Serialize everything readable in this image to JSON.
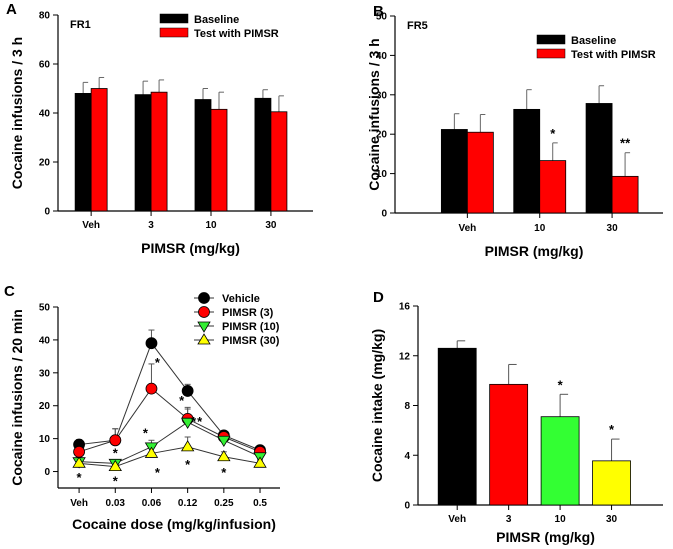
{
  "chart_data": [
    {
      "panel": "A",
      "type": "bar",
      "inset_label": "FR1",
      "categories": [
        "Veh",
        "3",
        "10",
        "30"
      ],
      "series": [
        {
          "name": "Baseline",
          "color": "#000000",
          "values": [
            48,
            47.5,
            45.5,
            46
          ],
          "errors": [
            4.5,
            5.5,
            4.5,
            3.5
          ]
        },
        {
          "name": "Test with PIMSR",
          "color": "#ff0000",
          "values": [
            50,
            48.5,
            41.5,
            40.5
          ],
          "errors": [
            4.5,
            5,
            7,
            6.5
          ]
        }
      ],
      "xlabel": "PIMSR (mg/kg)",
      "ylabel": "Cocaine infusions / 3 h",
      "ylim": [
        0,
        80
      ],
      "yticks": [
        0,
        20,
        40,
        60,
        80
      ],
      "annotations": [],
      "legend_position": "top-right"
    },
    {
      "panel": "B",
      "type": "bar",
      "inset_label": "FR5",
      "categories": [
        "Veh",
        "10",
        "30"
      ],
      "series": [
        {
          "name": "Baseline",
          "color": "#000000",
          "values": [
            21.2,
            26.3,
            27.8
          ],
          "errors": [
            4,
            5,
            4.5
          ]
        },
        {
          "name": "Test with PIMSR",
          "color": "#ff0000",
          "values": [
            20.5,
            13.3,
            9.3
          ],
          "errors": [
            4.5,
            4.5,
            6
          ]
        }
      ],
      "xlabel": "PIMSR (mg/kg)",
      "ylabel": "Cocaine infusions / 3 h",
      "ylim": [
        0,
        50
      ],
      "yticks": [
        0,
        10,
        20,
        30,
        40,
        50
      ],
      "annotations": [
        {
          "category": "10",
          "series": "Test with PIMSR",
          "text": "*"
        },
        {
          "category": "30",
          "series": "Test with PIMSR",
          "text": "**"
        }
      ],
      "legend_position": "top-right"
    },
    {
      "panel": "C",
      "type": "line",
      "categories": [
        "Veh",
        "0.03",
        "0.06",
        "0.12",
        "0.25",
        "0.5"
      ],
      "series": [
        {
          "name": "Vehicle",
          "color": "#000000",
          "marker": "circle",
          "values": [
            8.2,
            9.5,
            39,
            24.5,
            11,
            6.5
          ],
          "errors": [
            1.5,
            3.5,
            4,
            2,
            1,
            1
          ]
        },
        {
          "name": "PIMSR (3)",
          "color": "#ff0000",
          "marker": "circle",
          "values": [
            6,
            9.5,
            25.2,
            16,
            10.5,
            6
          ],
          "errors": [
            2,
            3.5,
            7.5,
            3.5,
            1,
            1
          ]
        },
        {
          "name": "PIMSR (10)",
          "color": "#33ee33",
          "marker": "triangle-down",
          "values": [
            3,
            2.5,
            7.5,
            15,
            9.5,
            4.5
          ],
          "errors": [
            1.5,
            1,
            2,
            4,
            1,
            1
          ]
        },
        {
          "name": "PIMSR (30)",
          "color": "#ffff00",
          "marker": "triangle-up",
          "values": [
            2.5,
            1.5,
            5.5,
            7.5,
            4.5,
            2.5
          ],
          "errors": [
            1.5,
            1,
            2.5,
            3,
            1.5,
            1
          ]
        }
      ],
      "xlabel": "Cocaine dose (mg/kg/infusion)",
      "ylabel": "Cocaine infusions / 20 min",
      "ylim": [
        -5,
        50
      ],
      "yticks": [
        0,
        10,
        20,
        30,
        40,
        50
      ],
      "annotations": [
        {
          "x": "Veh",
          "y": -2,
          "text": "*"
        },
        {
          "x": "0.03",
          "y": 5.5,
          "text": "*"
        },
        {
          "x": "0.03",
          "y": -3,
          "text": "*"
        },
        {
          "x": "0.06",
          "y": 33,
          "text": "*"
        },
        {
          "x": "0.06",
          "y": 11.5,
          "text": "*"
        },
        {
          "x": "0.06",
          "y": -0.5,
          "text": "*"
        },
        {
          "x": "0.12",
          "y": 21.5,
          "text": "*"
        },
        {
          "x": "0.12",
          "y": 15,
          "text": "*"
        },
        {
          "x": "0.12",
          "y": 15,
          "text": "*"
        },
        {
          "x": "0.12",
          "y": 2,
          "text": "*"
        },
        {
          "x": "0.25",
          "y": -0.5,
          "text": "*"
        }
      ],
      "legend_position": "top-right"
    },
    {
      "panel": "D",
      "type": "bar",
      "categories": [
        "Veh",
        "3",
        "10",
        "30"
      ],
      "values": [
        12.6,
        9.7,
        7.1,
        3.55
      ],
      "errors": [
        0.6,
        1.6,
        1.8,
        1.75
      ],
      "colors": [
        "#000000",
        "#ff0000",
        "#33ff33",
        "#ffff00"
      ],
      "xlabel": "PIMSR (mg/kg)",
      "ylabel": "Cocaine intake (mg/kg)",
      "ylim": [
        0,
        16
      ],
      "yticks": [
        0,
        4,
        8,
        12,
        16
      ],
      "annotations": [
        {
          "category": "10",
          "text": "*"
        },
        {
          "category": "30",
          "text": "*"
        }
      ]
    }
  ]
}
